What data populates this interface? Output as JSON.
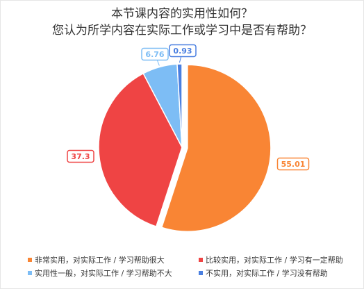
{
  "chart_data": {
    "type": "pie",
    "title_lines": [
      "本节课内容的实用性如何？",
      "您认为所学内容在实际工作或学习中是否有帮助？"
    ],
    "slices": [
      {
        "label": "非常实用，对实际工作 / 学习帮助很大",
        "value": 55.01,
        "display": "55.01",
        "color": "#F98534",
        "exploded": true
      },
      {
        "label": "比较实用，对实际工作 / 学习有一定帮助",
        "value": 37.3,
        "display": "37.3",
        "color": "#EF4444",
        "exploded": false
      },
      {
        "label": "实用性一般，对实际工作 / 学习帮助不大",
        "value": 6.76,
        "display": "6.76",
        "color": "#7DBDF5",
        "exploded": false
      },
      {
        "label": "不实用，对实际工作 / 学习没有帮助",
        "value": 0.93,
        "display": "0.93",
        "color": "#4A7FE0",
        "exploded": false
      }
    ],
    "legend_position": "bottom"
  }
}
